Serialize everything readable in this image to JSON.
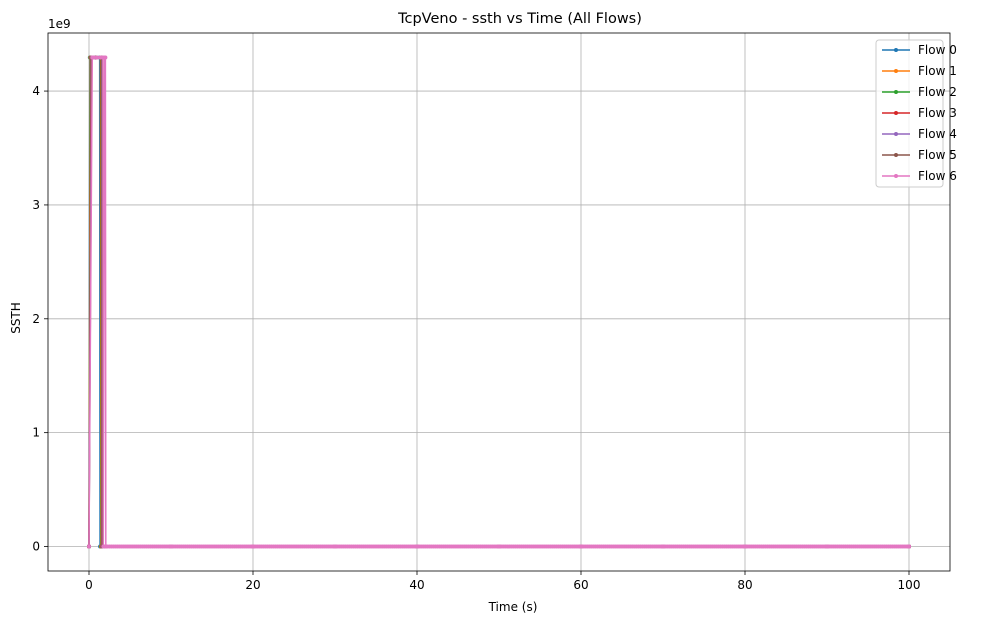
{
  "chart_data": {
    "type": "line",
    "title": "TcpVeno - ssth vs Time (All Flows)",
    "xlabel": "Time (s)",
    "ylabel": "SSTH",
    "y_offset_text": "1e9",
    "xlim": [
      -5,
      105
    ],
    "ylim": [
      -0.215,
      4.51
    ],
    "y_scale_note": "values in units of 1e9",
    "x_ticks": [
      0,
      20,
      40,
      60,
      80,
      100
    ],
    "y_ticks": [
      0,
      1,
      2,
      3,
      4
    ],
    "x_tick_labels": [
      "0",
      "20",
      "40",
      "60",
      "80",
      "100"
    ],
    "y_tick_labels": [
      "0",
      "1",
      "2",
      "3",
      "4"
    ],
    "grid": true,
    "legend_position": "top-right",
    "series": [
      {
        "name": "Flow 0",
        "color": "#1f77b4",
        "x": [
          0,
          0.1,
          0.2,
          0.3,
          0.4,
          1.3,
          1.35,
          2,
          10,
          20,
          30,
          40,
          50,
          60,
          70,
          80,
          90,
          100
        ],
        "y": [
          0,
          4.295,
          4.295,
          4.295,
          4.295,
          4.295,
          0,
          0,
          0,
          0,
          0,
          0,
          0,
          0,
          0,
          0,
          0,
          0
        ]
      },
      {
        "name": "Flow 1",
        "color": "#ff7f0e",
        "x": [
          0,
          0.15,
          0.3,
          0.5,
          1.4,
          1.45,
          2,
          10,
          20,
          30,
          40,
          50,
          60,
          70,
          80,
          90,
          100
        ],
        "y": [
          0,
          4.295,
          4.295,
          4.295,
          4.295,
          0,
          0,
          0,
          0,
          0,
          0,
          0,
          0,
          0,
          0,
          0,
          0
        ]
      },
      {
        "name": "Flow 2",
        "color": "#2ca02c",
        "x": [
          0,
          0.2,
          0.35,
          0.6,
          1.45,
          1.5,
          2,
          10,
          20,
          30,
          40,
          50,
          60,
          70,
          80,
          90,
          100
        ],
        "y": [
          0,
          4.295,
          4.295,
          4.295,
          4.295,
          0,
          0,
          0,
          0,
          0,
          0,
          0,
          0,
          0,
          0,
          0,
          0
        ]
      },
      {
        "name": "Flow 3",
        "color": "#d62728",
        "x": [
          0,
          0.25,
          0.4,
          0.7,
          1.5,
          1.55,
          2,
          10,
          20,
          30,
          40,
          50,
          60,
          70,
          80,
          90,
          100
        ],
        "y": [
          0,
          4.295,
          4.295,
          4.295,
          4.295,
          0,
          0,
          0,
          0,
          0,
          0,
          0,
          0,
          0,
          0,
          0,
          0
        ]
      },
      {
        "name": "Flow 4",
        "color": "#9467bd",
        "x": [
          0,
          0.3,
          0.45,
          0.8,
          1.55,
          1.6,
          2,
          10,
          20,
          30,
          40,
          50,
          60,
          70,
          80,
          90,
          100
        ],
        "y": [
          0,
          4.295,
          4.295,
          4.295,
          4.295,
          0,
          0,
          0,
          0,
          0,
          0,
          0,
          0,
          0,
          0,
          0,
          0
        ]
      },
      {
        "name": "Flow 5",
        "color": "#8c564b",
        "x": [
          0,
          0.35,
          0.5,
          0.9,
          1.6,
          1.65,
          2,
          10,
          20,
          30,
          40,
          50,
          60,
          70,
          80,
          90,
          100
        ],
        "y": [
          0,
          4.295,
          4.295,
          4.295,
          4.295,
          0,
          0,
          0,
          0,
          0,
          0,
          0,
          0,
          0,
          0,
          0,
          0
        ]
      },
      {
        "name": "Flow 6",
        "color": "#e377c2",
        "x": [
          0,
          0.4,
          0.6,
          1.0,
          1.4,
          1.7,
          1.75,
          1.9,
          2.0,
          2.05,
          10,
          20,
          30,
          40,
          50,
          60,
          70,
          80,
          90,
          100
        ],
        "y": [
          0,
          4.295,
          4.295,
          4.295,
          4.295,
          4.295,
          0,
          4.295,
          4.295,
          0,
          0,
          0,
          0,
          0,
          0,
          0,
          0,
          0,
          0,
          0
        ]
      }
    ]
  }
}
